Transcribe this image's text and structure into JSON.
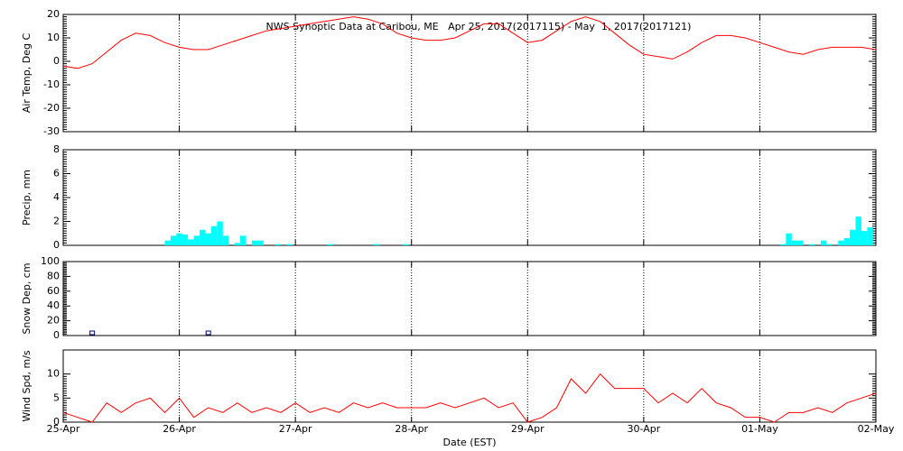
{
  "chart_data": [
    {
      "type": "line",
      "title": "NWS Synoptic Data at Caribou, ME   Apr 25, 2017(2017115) - May  1, 2017(2017121)",
      "y_label": "Air Temp, Deg C",
      "ylim": [
        -30,
        20
      ],
      "yticks": [
        -30,
        -20,
        -10,
        0,
        10,
        20
      ],
      "xlim": [
        0,
        7
      ],
      "series": [
        {
          "name": "Air Temp",
          "color": "#ff0000",
          "x": [
            0,
            0.125,
            0.25,
            0.375,
            0.5,
            0.625,
            0.75,
            0.875,
            1,
            1.125,
            1.25,
            1.375,
            1.5,
            1.625,
            1.75,
            1.875,
            2,
            2.125,
            2.25,
            2.375,
            2.5,
            2.625,
            2.75,
            2.875,
            3,
            3.125,
            3.25,
            3.375,
            3.5,
            3.625,
            3.75,
            3.875,
            4,
            4.125,
            4.25,
            4.375,
            4.5,
            4.625,
            4.75,
            4.875,
            5,
            5.125,
            5.25,
            5.375,
            5.5,
            5.625,
            5.75,
            5.875,
            6,
            6.125,
            6.25,
            6.375,
            6.5,
            6.625,
            6.75,
            6.875,
            7
          ],
          "values": [
            -2,
            -3,
            -1,
            4,
            9,
            12,
            11,
            8,
            6,
            5,
            5,
            7,
            9,
            11,
            13,
            14,
            15,
            16,
            17,
            18,
            19,
            18,
            16,
            12,
            10,
            9,
            9,
            10,
            13,
            16,
            16,
            12,
            8,
            9,
            13,
            17,
            19,
            17,
            12,
            7,
            3,
            2,
            1,
            4,
            8,
            11,
            11,
            10,
            8,
            6,
            4,
            3,
            5,
            6,
            6,
            6,
            5
          ]
        }
      ]
    },
    {
      "type": "bar",
      "y_label": "Precip, mm",
      "ylim": [
        0,
        8
      ],
      "yticks": [
        0,
        2,
        4,
        6,
        8
      ],
      "xlim": [
        0,
        7
      ],
      "bar_width": 0.05,
      "series": [
        {
          "name": "Precip",
          "color": "#00ffff",
          "x": [
            0.9,
            0.95,
            1.0,
            1.05,
            1.1,
            1.15,
            1.2,
            1.25,
            1.3,
            1.35,
            1.4,
            1.5,
            1.55,
            1.65,
            1.7,
            1.85,
            1.95,
            2.3,
            2.7,
            2.95,
            6.2,
            6.25,
            6.3,
            6.35,
            6.45,
            6.55,
            6.6,
            6.7,
            6.75,
            6.8,
            6.85,
            6.9,
            6.95
          ],
          "values": [
            0.4,
            0.8,
            1.0,
            0.9,
            0.5,
            0.8,
            1.3,
            1.0,
            1.6,
            2.0,
            0.8,
            0.2,
            0.8,
            0.4,
            0.4,
            0.1,
            0.1,
            0.1,
            0.1,
            0.1,
            0.1,
            1.0,
            0.4,
            0.4,
            0.1,
            0.4,
            0.1,
            0.4,
            0.6,
            1.3,
            2.4,
            1.2,
            1.5
          ]
        }
      ]
    },
    {
      "type": "scatter",
      "y_label": "Snow Dep, cm",
      "ylim": [
        0,
        100
      ],
      "yticks": [
        0,
        20,
        40,
        60,
        80,
        100
      ],
      "xlim": [
        0,
        7
      ],
      "series": [
        {
          "name": "Snow Depth",
          "color": "#000080",
          "x": [
            0.25,
            1.25
          ],
          "values": [
            0,
            0
          ]
        }
      ]
    },
    {
      "type": "line",
      "y_label": "Wind Spd, m/s",
      "x_label": "Date (EST)",
      "ylim": [
        0,
        15
      ],
      "yticks": [
        0,
        5,
        10
      ],
      "xlim": [
        0,
        7
      ],
      "xticks": [
        {
          "value": 0,
          "label": "25-Apr"
        },
        {
          "value": 1,
          "label": "26-Apr"
        },
        {
          "value": 2,
          "label": "27-Apr"
        },
        {
          "value": 3,
          "label": "28-Apr"
        },
        {
          "value": 4,
          "label": "29-Apr"
        },
        {
          "value": 5,
          "label": "30-Apr"
        },
        {
          "value": 6,
          "label": "01-May"
        },
        {
          "value": 7,
          "label": "02-May"
        }
      ],
      "series": [
        {
          "name": "Wind Speed",
          "color": "#ff0000",
          "x": [
            0,
            0.125,
            0.25,
            0.375,
            0.5,
            0.625,
            0.75,
            0.875,
            1,
            1.125,
            1.25,
            1.375,
            1.5,
            1.625,
            1.75,
            1.875,
            2,
            2.125,
            2.25,
            2.375,
            2.5,
            2.625,
            2.75,
            2.875,
            3,
            3.125,
            3.25,
            3.375,
            3.5,
            3.625,
            3.75,
            3.875,
            4,
            4.125,
            4.25,
            4.375,
            4.5,
            4.625,
            4.75,
            4.875,
            5,
            5.125,
            5.25,
            5.375,
            5.5,
            5.625,
            5.75,
            5.875,
            6,
            6.125,
            6.25,
            6.375,
            6.5,
            6.625,
            6.75,
            6.875,
            7
          ],
          "values": [
            2,
            1,
            0,
            4,
            2,
            4,
            5,
            2,
            5,
            1,
            3,
            2,
            4,
            2,
            3,
            2,
            4,
            2,
            3,
            2,
            4,
            3,
            4,
            3,
            3,
            3,
            4,
            3,
            4,
            5,
            3,
            4,
            0,
            1,
            3,
            9,
            6,
            10,
            7,
            7,
            7,
            4,
            6,
            4,
            7,
            4,
            3,
            1,
            1,
            0,
            2,
            2,
            3,
            2,
            4,
            5,
            6
          ]
        }
      ]
    }
  ]
}
